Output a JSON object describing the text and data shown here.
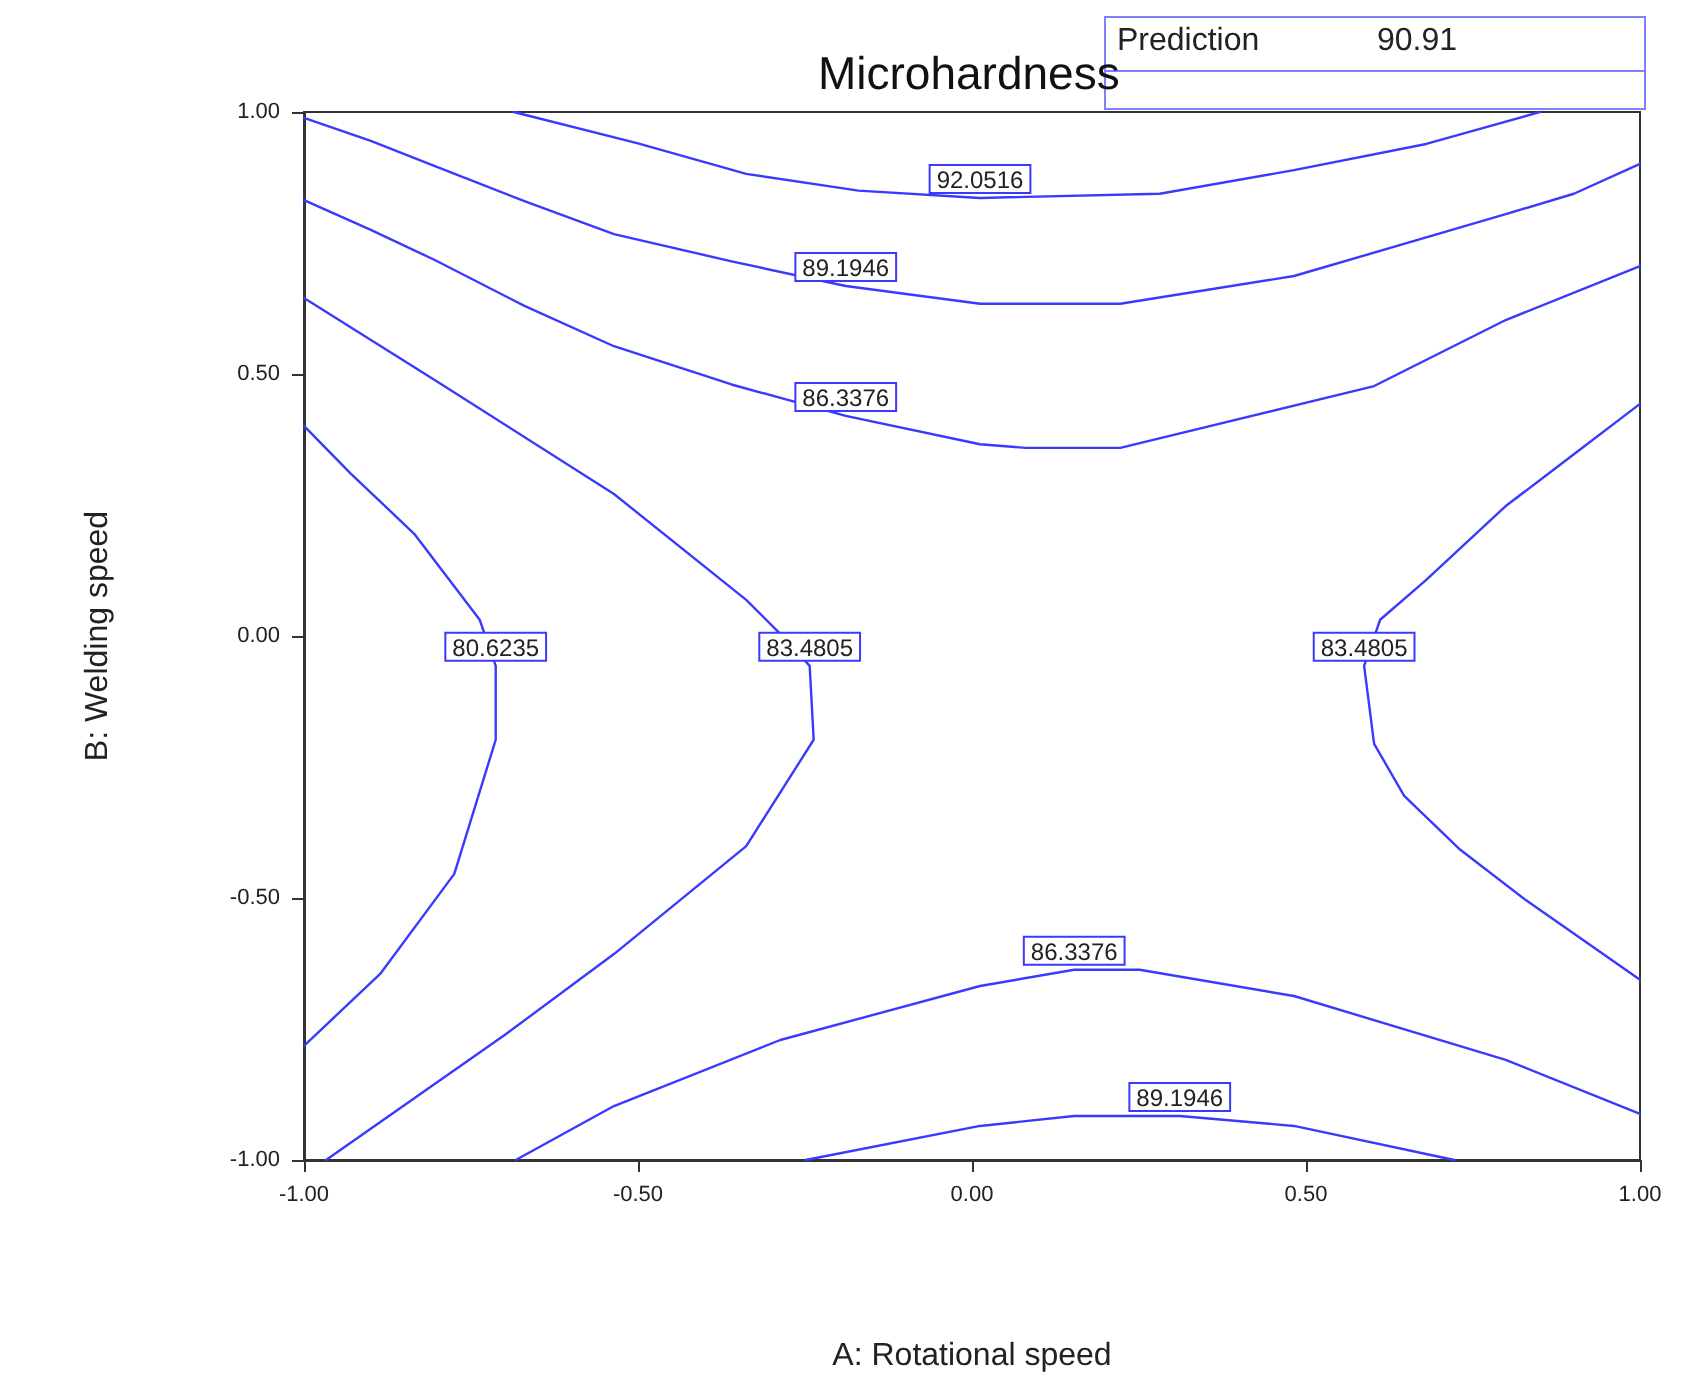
{
  "chart_data": {
    "type": "line",
    "title": "Microhardness",
    "xlabel": "A: Rotational speed",
    "ylabel": "B: Welding speed",
    "annotations": [
      "Prediction",
      "90.91"
    ],
    "xlim": [
      -1,
      1
    ],
    "ylim": [
      -1,
      1
    ],
    "xticks": [
      {
        "value": -1,
        "label": "-1.00"
      },
      {
        "value": -0.5,
        "label": "-0.50"
      },
      {
        "value": 0,
        "label": "0.00"
      },
      {
        "value": 0.5,
        "label": "0.50"
      },
      {
        "value": 1,
        "label": "1.00"
      }
    ],
    "yticks": [
      {
        "value": -1,
        "label": "-1.00"
      },
      {
        "value": -0.5,
        "label": "-0.50"
      },
      {
        "value": 0,
        "label": "0.00"
      },
      {
        "value": 0.5,
        "label": "0.50"
      },
      {
        "value": 1,
        "label": "1.00"
      }
    ],
    "grid": false,
    "legend": false,
    "marker": "none",
    "line_style": "solid",
    "series": [
      {
        "name": "92.0516",
        "color": "#3a3aff",
        "x": [
          -0.686,
          -0.5,
          -0.338,
          -0.17,
          0.012,
          0.281,
          0.482,
          0.68,
          0.85
        ],
        "values": [
          1.0,
          0.94,
          0.882,
          0.85,
          0.836,
          0.844,
          0.889,
          0.939,
          1.0
        ]
      },
      {
        "name": "89.1946",
        "color": "#3a3aff",
        "x": [
          -1,
          -0.9,
          -0.805,
          -0.67,
          -0.536,
          -0.36,
          -0.189,
          0.012,
          0.222,
          0.482,
          0.799,
          0.901,
          1.0
        ],
        "values": [
          0.989,
          0.945,
          0.897,
          0.83,
          0.767,
          0.715,
          0.668,
          0.634,
          0.634,
          0.687,
          0.805,
          0.844,
          0.901
        ]
      },
      {
        "name": "86.3376",
        "color": "#3a3aff",
        "x": [
          -1,
          -0.9,
          -0.805,
          -0.67,
          -0.536,
          -0.36,
          -0.189,
          0.012,
          0.081,
          0.222,
          0.602,
          0.799,
          1.0
        ],
        "values": [
          0.832,
          0.775,
          0.718,
          0.63,
          0.553,
          0.48,
          0.42,
          0.366,
          0.359,
          0.359,
          0.477,
          0.603,
          0.706
        ]
      },
      {
        "name": "80.6235",
        "color": "#3a3aff",
        "x": [
          -1,
          -0.93,
          -0.835,
          -0.737,
          -0.713,
          -0.713,
          -0.775,
          -0.886,
          -1
        ],
        "values": [
          0.401,
          0.31,
          0.195,
          0.031,
          -0.057,
          -0.198,
          -0.454,
          -0.645,
          -0.782
        ]
      },
      {
        "name": "83.4805",
        "color": "#3a3aff",
        "x": [
          -1,
          -0.805,
          -0.536,
          -0.338,
          -0.287,
          -0.243,
          -0.237,
          -0.338,
          -0.536,
          -0.698,
          -0.967
        ],
        "values": [
          0.645,
          0.489,
          0.271,
          0.069,
          0.004,
          -0.057,
          -0.198,
          -0.401,
          -0.607,
          -0.76,
          -1.0
        ]
      },
      {
        "name": "83.4805",
        "color": "#3a3aff",
        "x": [
          1.0,
          0.901,
          0.799,
          0.68,
          0.611,
          0.587,
          0.602,
          0.647,
          0.731,
          0.829,
          1.0
        ],
        "values": [
          0.443,
          0.347,
          0.248,
          0.107,
          0.031,
          -0.057,
          -0.206,
          -0.305,
          -0.408,
          -0.504,
          -0.656
        ]
      },
      {
        "name": "86.3376",
        "color": "#3a3aff",
        "x": [
          -0.683,
          -0.536,
          -0.287,
          0.012,
          0.153,
          0.251,
          0.482,
          0.799,
          1.0
        ],
        "values": [
          -1.0,
          -0.897,
          -0.771,
          -0.668,
          -0.637,
          -0.637,
          -0.687,
          -0.809,
          -0.912
        ]
      },
      {
        "name": "89.1946",
        "color": "#3a3aff",
        "x": [
          -0.249,
          0.012,
          0.153,
          0.311,
          0.482,
          0.722
        ],
        "values": [
          -1.0,
          -0.935,
          -0.916,
          -0.916,
          -0.935,
          -1.0
        ]
      }
    ]
  }
}
